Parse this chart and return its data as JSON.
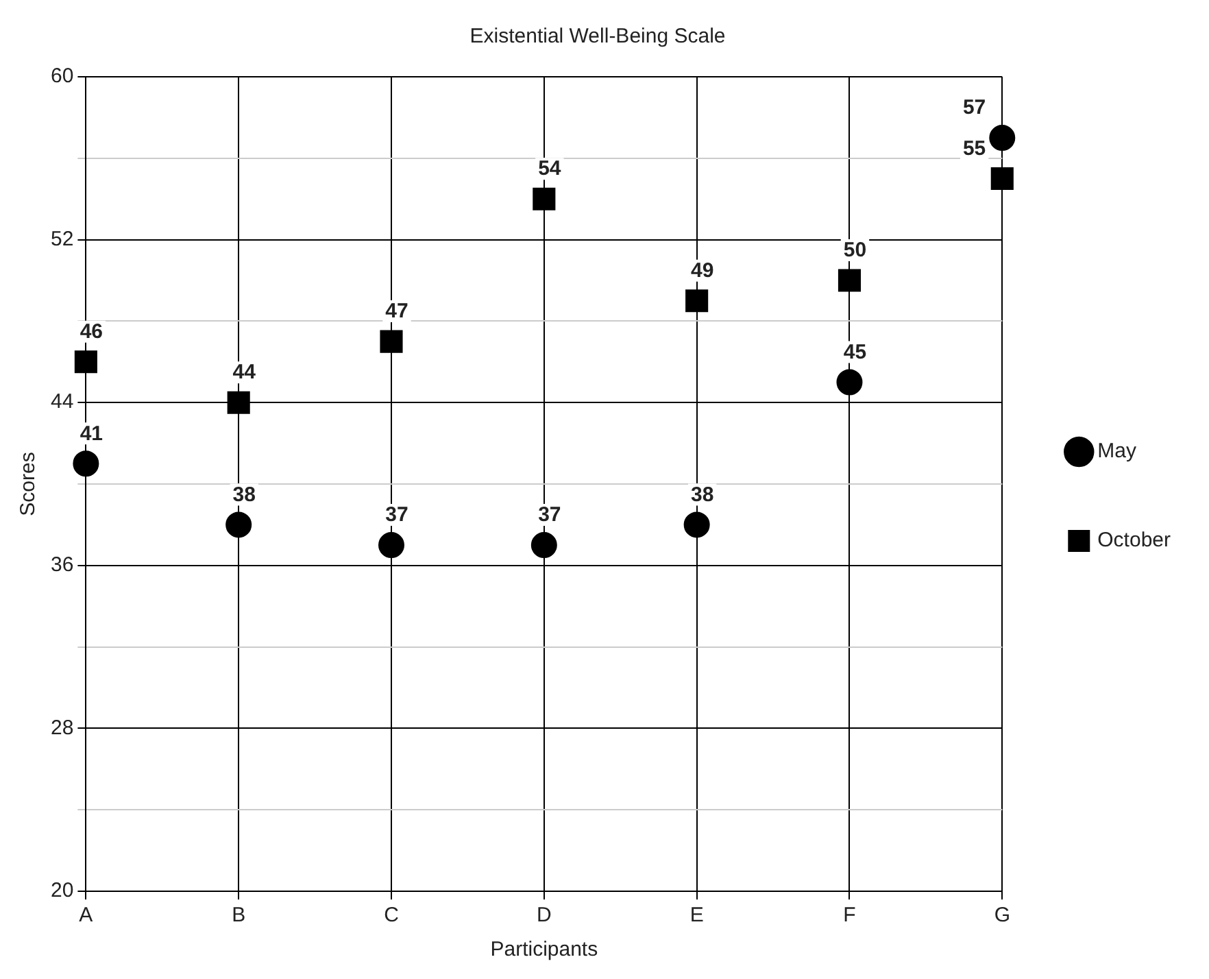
{
  "chart_data": {
    "type": "scatter",
    "title": "Existential Well-Being Scale",
    "xlabel": "Participants",
    "ylabel": "Scores",
    "categories": [
      "A",
      "B",
      "C",
      "D",
      "E",
      "F",
      "G"
    ],
    "series": [
      {
        "name": "May",
        "color": "#000000",
        "marker": "circle",
        "values": [
          41,
          38,
          37,
          37,
          38,
          45,
          57
        ]
      },
      {
        "name": "October",
        "color": "#000000",
        "marker": "square",
        "values": [
          46,
          44,
          47,
          54,
          49,
          50,
          55
        ]
      }
    ],
    "ylim": [
      20,
      60
    ],
    "yticks": [
      20,
      {
        "value": 24,
        "label": null
      },
      28,
      {
        "value": 32,
        "label": null
      },
      36,
      {
        "value": 40,
        "label": null
      },
      44,
      {
        "value": 48,
        "label": null
      },
      52,
      {
        "value": 56,
        "label": null
      },
      60
    ],
    "grid": true,
    "legend": "right",
    "data_labels": true
  }
}
